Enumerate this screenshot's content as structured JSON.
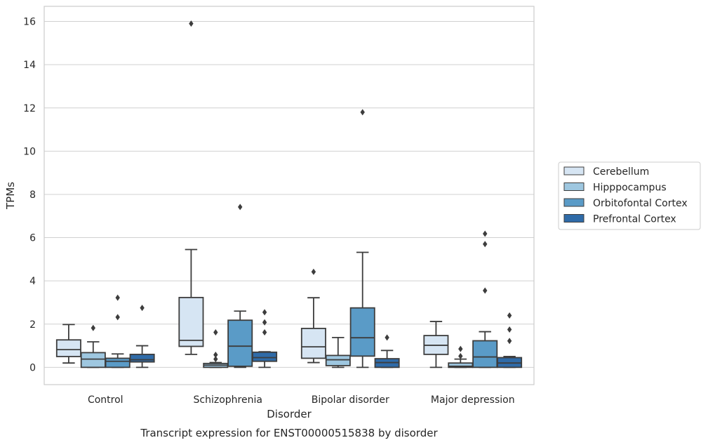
{
  "chart_data": {
    "type": "boxplot",
    "caption": "Transcript expression for ENST00000515838 by disorder",
    "xlabel": "Disorder",
    "ylabel": "TPMs",
    "ylim": [
      -0.8,
      16.7
    ],
    "yticks": [
      0,
      2,
      4,
      6,
      8,
      10,
      12,
      14,
      16
    ],
    "grid": true,
    "legend_position": "right",
    "categories": [
      "Control",
      "Schizophrenia",
      "Bipolar disorder",
      "Major depression"
    ],
    "series": [
      {
        "name": "Cerebellum",
        "color": "#d6e5f3",
        "boxes": [
          {
            "whislo": 0.2,
            "q1": 0.5,
            "med": 0.82,
            "q3": 1.27,
            "whishi": 1.98,
            "fliers": []
          },
          {
            "whislo": 0.6,
            "q1": 0.97,
            "med": 1.25,
            "q3": 3.23,
            "whishi": 5.45,
            "fliers": [
              15.9
            ]
          },
          {
            "whislo": 0.22,
            "q1": 0.42,
            "med": 0.95,
            "q3": 1.8,
            "whishi": 3.22,
            "fliers": [
              4.42
            ]
          },
          {
            "whislo": 0.0,
            "q1": 0.6,
            "med": 1.02,
            "q3": 1.47,
            "whishi": 2.12,
            "fliers": []
          }
        ]
      },
      {
        "name": "Hipppocampus",
        "color": "#9ec7e0",
        "boxes": [
          {
            "whislo": 0.0,
            "q1": 0.0,
            "med": 0.38,
            "q3": 0.68,
            "whishi": 1.18,
            "fliers": [
              1.82
            ]
          },
          {
            "whislo": 0.0,
            "q1": 0.0,
            "med": 0.1,
            "q3": 0.18,
            "whishi": 0.22,
            "fliers": [
              0.38,
              0.58,
              1.62
            ]
          },
          {
            "whislo": 0.0,
            "q1": 0.08,
            "med": 0.35,
            "q3": 0.55,
            "whishi": 1.38,
            "fliers": []
          },
          {
            "whislo": 0.0,
            "q1": 0.0,
            "med": 0.05,
            "q3": 0.2,
            "whishi": 0.38,
            "fliers": [
              0.52,
              0.85
            ]
          }
        ]
      },
      {
        "name": "Orbitofontal Cortex",
        "color": "#5a9bc7",
        "boxes": [
          {
            "whislo": 0.0,
            "q1": 0.0,
            "med": 0.28,
            "q3": 0.42,
            "whishi": 0.62,
            "fliers": [
              2.32,
              3.22
            ]
          },
          {
            "whislo": 0.0,
            "q1": 0.05,
            "med": 0.98,
            "q3": 2.18,
            "whishi": 2.6,
            "fliers": [
              7.42
            ]
          },
          {
            "whislo": 0.0,
            "q1": 0.52,
            "med": 1.37,
            "q3": 2.75,
            "whishi": 5.32,
            "fliers": [
              11.8
            ]
          },
          {
            "whislo": 0.0,
            "q1": 0.0,
            "med": 0.48,
            "q3": 1.23,
            "whishi": 1.65,
            "fliers": [
              3.55,
              5.7,
              6.18
            ]
          }
        ]
      },
      {
        "name": "Prefrontal Cortex",
        "color": "#2f6ba8",
        "boxes": [
          {
            "whislo": 0.0,
            "q1": 0.25,
            "med": 0.35,
            "q3": 0.6,
            "whishi": 1.0,
            "fliers": [
              2.75
            ]
          },
          {
            "whislo": 0.0,
            "q1": 0.28,
            "med": 0.45,
            "q3": 0.7,
            "whishi": 0.72,
            "fliers": [
              1.62,
              2.08,
              2.55
            ]
          },
          {
            "whislo": 0.0,
            "q1": 0.0,
            "med": 0.22,
            "q3": 0.4,
            "whishi": 0.78,
            "fliers": [
              1.38
            ]
          },
          {
            "whislo": 0.0,
            "q1": 0.0,
            "med": 0.2,
            "q3": 0.45,
            "whishi": 0.5,
            "fliers": [
              1.22,
              1.75,
              2.4
            ]
          }
        ]
      }
    ]
  }
}
